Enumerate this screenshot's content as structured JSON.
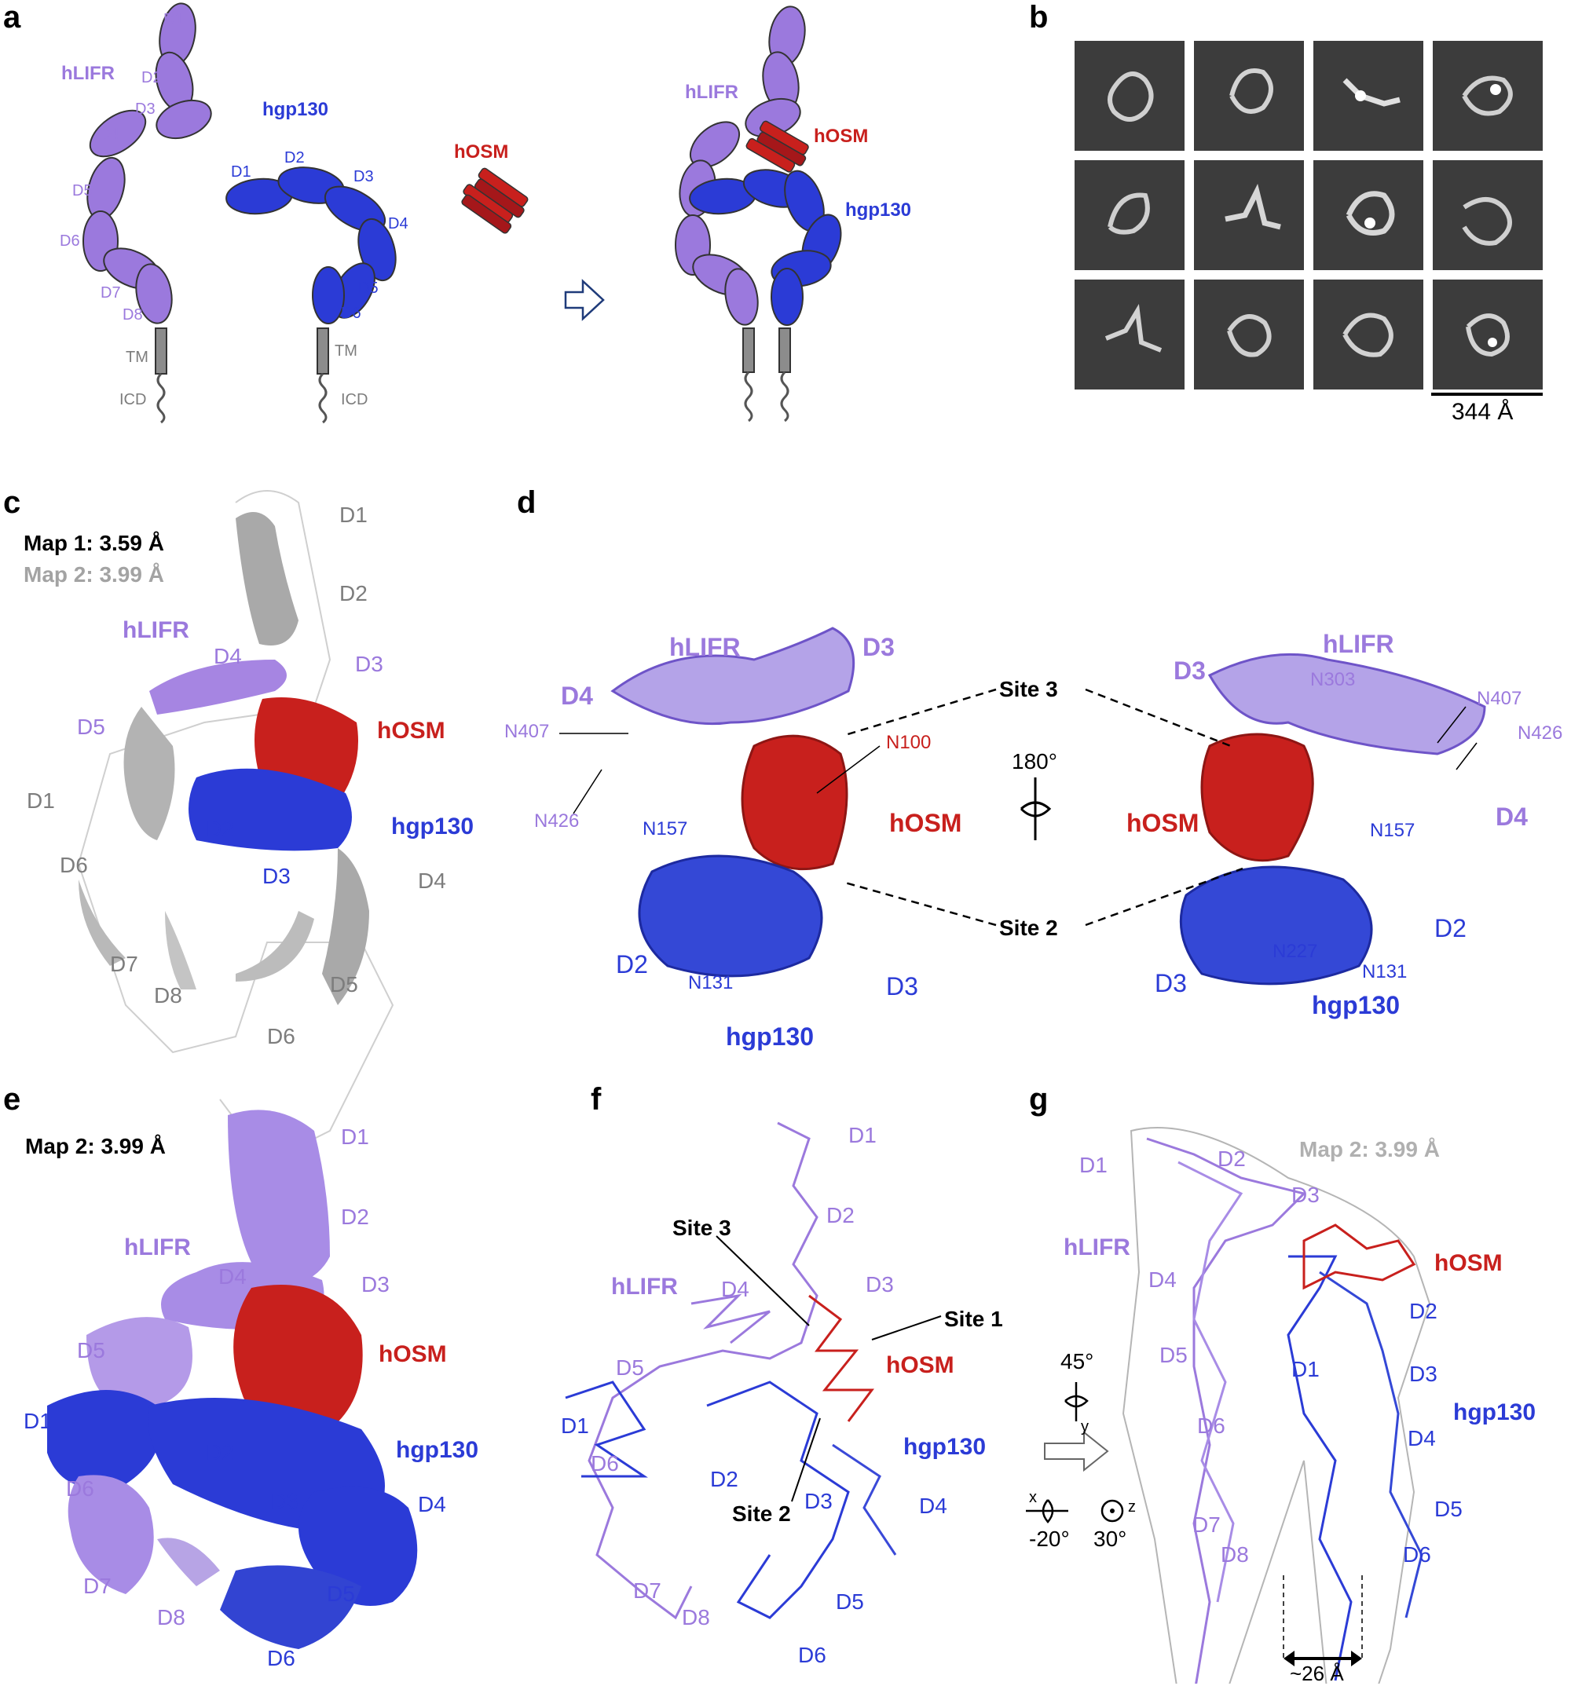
{
  "panels": {
    "a": {
      "label": "a",
      "hLIFR": "hLIFR",
      "hgp130": "hgp130",
      "hOSM": "hOSM",
      "lifr_domains": [
        "D1",
        "D2",
        "D3",
        "D4",
        "D5",
        "D6",
        "D7",
        "D8"
      ],
      "gp130_domains": [
        "D1",
        "D2",
        "D3",
        "D4",
        "D5",
        "D6"
      ],
      "tm": "TM",
      "icd": "ICD"
    },
    "b": {
      "label": "b",
      "scale_bar": "344 Å"
    },
    "c": {
      "label": "c",
      "map1": "Map 1: 3.59 Å",
      "map2": "Map 2: 3.99 Å",
      "hLIFR": "hLIFR",
      "hOSM": "hOSM",
      "hgp130": "hgp130",
      "domains": [
        "D1",
        "D2",
        "D3",
        "D4",
        "D5",
        "D1",
        "D2",
        "D3",
        "D6",
        "D7",
        "D8",
        "D4",
        "D5",
        "D6"
      ]
    },
    "d": {
      "label": "d",
      "hLIFR": "hLIFR",
      "hOSM": "hOSM",
      "hgp130": "hgp130",
      "site3": "Site 3",
      "site2": "Site 2",
      "rotation": "180°",
      "residues_left": [
        "N407",
        "N426",
        "N100",
        "N157",
        "N131"
      ],
      "residues_right": [
        "N303",
        "N407",
        "N426",
        "N157",
        "N227",
        "N131"
      ],
      "domains_left": [
        "D4",
        "D3",
        "D2",
        "D3"
      ],
      "domains_right": [
        "D3",
        "D4",
        "D2",
        "D3"
      ]
    },
    "e": {
      "label": "e",
      "map2": "Map 2: 3.99 Å",
      "hLIFR": "hLIFR",
      "hOSM": "hOSM",
      "hgp130": "hgp130"
    },
    "f": {
      "label": "f",
      "hLIFR": "hLIFR",
      "hOSM": "hOSM",
      "hgp130": "hgp130",
      "site1": "Site 1",
      "site2": "Site 2",
      "site3": "Site 3"
    },
    "g": {
      "label": "g",
      "map2": "Map 2: 3.99 Å",
      "hLIFR": "hLIFR",
      "hOSM": "hOSM",
      "hgp130": "hgp130",
      "rot_y": "45°",
      "rot_x": "-20°",
      "rot_z": "30°",
      "axis_x": "x",
      "axis_y": "y",
      "axis_z": "z",
      "distance": "~26 Å"
    }
  },
  "colors": {
    "lifr": "#9b79dd",
    "gp130": "#2b3bd6",
    "osm": "#c8201d",
    "grey": "#8c8c8c"
  }
}
